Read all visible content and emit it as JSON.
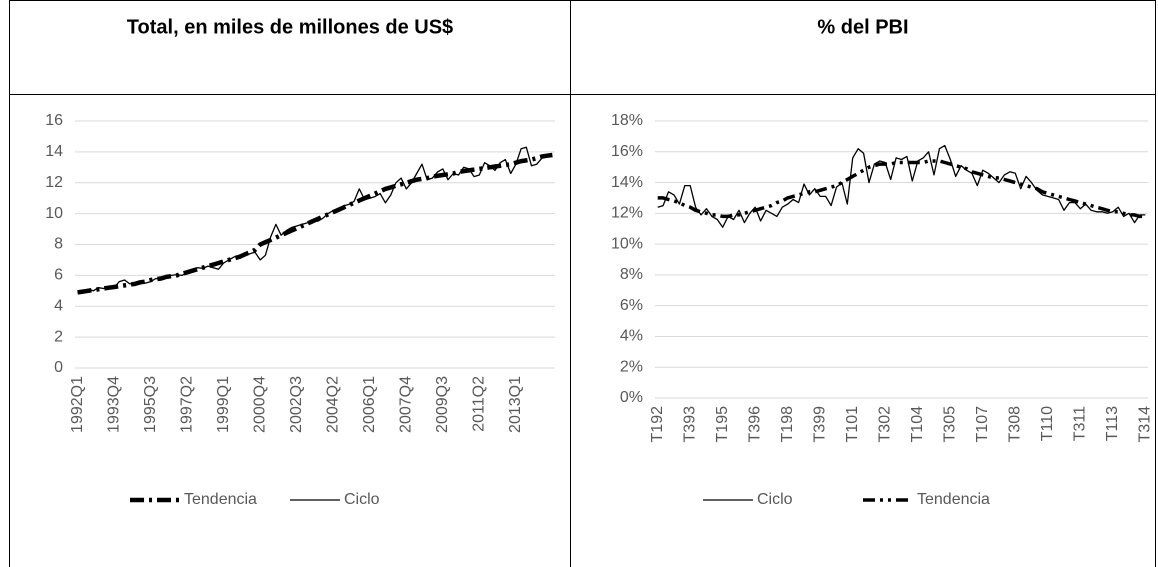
{
  "chart_data": [
    {
      "type": "line",
      "title": "Total, en miles de millones de US$",
      "categories": [
        "1992Q1",
        null,
        null,
        null,
        null,
        null,
        null,
        "1993Q4",
        null,
        null,
        null,
        null,
        null,
        null,
        "1995Q3",
        null,
        null,
        null,
        null,
        null,
        null,
        "1997Q2",
        null,
        null,
        null,
        null,
        null,
        null,
        "1999Q1",
        null,
        null,
        null,
        null,
        null,
        null,
        "2000Q4",
        null,
        null,
        null,
        null,
        null,
        null,
        "2002Q3",
        null,
        null,
        null,
        null,
        null,
        null,
        "2004Q2",
        null,
        null,
        null,
        null,
        null,
        null,
        "2006Q1",
        null,
        null,
        null,
        null,
        null,
        null,
        "2007Q4",
        null,
        null,
        null,
        null,
        null,
        null,
        "2009Q3",
        null,
        null,
        null,
        null,
        null,
        null,
        "2011Q2",
        null,
        null,
        null,
        null,
        null,
        null,
        "2013Q1",
        null,
        null,
        null,
        null,
        null,
        null,
        null
      ],
      "series": [
        {
          "name": "Tendencia",
          "color": "#000000",
          "style": "dashed",
          "values": [
            4.9,
            4.95,
            5.0,
            5.05,
            5.1,
            5.15,
            5.2,
            5.25,
            5.3,
            5.35,
            5.4,
            5.45,
            5.55,
            5.6,
            5.7,
            5.75,
            5.8,
            5.9,
            5.95,
            6.0,
            6.1,
            6.2,
            6.3,
            6.4,
            6.5,
            6.6,
            6.7,
            6.8,
            6.9,
            7.0,
            7.1,
            7.2,
            7.35,
            7.5,
            7.65,
            8.0,
            8.15,
            8.3,
            8.45,
            8.6,
            8.75,
            8.9,
            9.05,
            9.2,
            9.35,
            9.5,
            9.65,
            9.8,
            9.95,
            10.1,
            10.25,
            10.4,
            10.55,
            10.7,
            10.85,
            11.0,
            11.15,
            11.3,
            11.45,
            11.6,
            11.7,
            11.8,
            11.9,
            12.0,
            12.1,
            12.2,
            12.25,
            12.3,
            12.4,
            12.45,
            12.5,
            12.55,
            12.6,
            12.7,
            12.75,
            12.8,
            12.85,
            12.9,
            12.95,
            13.0,
            13.05,
            13.1,
            13.15,
            13.2,
            13.3,
            13.4,
            13.45,
            13.5,
            13.6,
            13.7,
            13.75,
            13.8
          ]
        },
        {
          "name": "Ciclo",
          "color": "#000000",
          "style": "solid",
          "values": [
            4.85,
            5.0,
            5.1,
            5.0,
            5.2,
            5.15,
            5.25,
            5.2,
            5.6,
            5.7,
            5.45,
            5.5,
            5.55,
            5.5,
            5.6,
            5.8,
            5.75,
            5.9,
            6.0,
            6.05,
            6.0,
            6.2,
            6.35,
            6.5,
            6.45,
            6.6,
            6.5,
            6.4,
            6.8,
            7.0,
            7.2,
            7.3,
            7.25,
            7.4,
            7.5,
            7.0,
            7.3,
            8.5,
            9.3,
            8.6,
            8.9,
            9.1,
            9.2,
            9.3,
            9.4,
            9.6,
            9.5,
            9.7,
            10.0,
            10.2,
            10.3,
            10.5,
            10.6,
            10.8,
            11.6,
            10.9,
            11.0,
            11.1,
            11.3,
            10.7,
            11.2,
            12.0,
            12.3,
            11.6,
            12.0,
            12.6,
            13.2,
            12.2,
            12.3,
            12.7,
            12.9,
            12.2,
            12.6,
            12.5,
            13.0,
            12.9,
            12.4,
            12.5,
            13.3,
            13.1,
            12.8,
            13.3,
            13.5,
            12.6,
            13.2,
            14.2,
            14.3,
            13.1,
            13.2,
            13.6,
            13.8,
            13.7
          ]
        }
      ],
      "ylim": [
        0,
        16
      ],
      "yticks": [
        0,
        2,
        4,
        6,
        8,
        10,
        12,
        14,
        16
      ],
      "grid": true,
      "legend": "bottom"
    },
    {
      "type": "line",
      "title": "% del PBI",
      "categories": [
        "T192",
        null,
        null,
        null,
        null,
        null,
        "T393",
        null,
        null,
        null,
        null,
        null,
        "T195",
        null,
        null,
        null,
        null,
        null,
        "T396",
        null,
        null,
        null,
        null,
        null,
        "T198",
        null,
        null,
        null,
        null,
        null,
        "T399",
        null,
        null,
        null,
        null,
        null,
        "T101",
        null,
        null,
        null,
        null,
        null,
        "T302",
        null,
        null,
        null,
        null,
        null,
        "T104",
        null,
        null,
        null,
        null,
        null,
        "T305",
        null,
        null,
        null,
        null,
        null,
        "T107",
        null,
        null,
        null,
        null,
        null,
        "T308",
        null,
        null,
        null,
        null,
        null,
        "T110",
        null,
        null,
        null,
        null,
        null,
        "T311",
        null,
        null,
        null,
        null,
        null,
        "T113",
        null,
        null,
        null,
        null,
        null,
        "T314"
      ],
      "series": [
        {
          "name": "Ciclo",
          "color": "#000000",
          "style": "solid",
          "values": [
            12.4,
            12.5,
            13.4,
            13.2,
            12.6,
            13.8,
            13.8,
            12.4,
            11.9,
            12.3,
            11.8,
            11.6,
            11.1,
            11.8,
            11.6,
            12.2,
            11.4,
            12.0,
            12.4,
            11.5,
            12.2,
            12.0,
            11.8,
            12.4,
            12.6,
            12.9,
            12.7,
            13.9,
            13.2,
            13.6,
            13.1,
            13.1,
            12.5,
            13.7,
            14.0,
            12.6,
            15.6,
            16.2,
            15.9,
            14.0,
            15.2,
            15.4,
            15.3,
            14.2,
            15.6,
            15.5,
            15.7,
            14.1,
            15.4,
            15.6,
            16.0,
            14.5,
            16.2,
            16.4,
            15.5,
            14.4,
            15.1,
            14.8,
            14.6,
            13.8,
            14.8,
            14.6,
            14.3,
            14.0,
            14.5,
            14.7,
            14.6,
            13.6,
            14.4,
            14.0,
            13.5,
            13.2,
            13.1,
            13.0,
            12.9,
            12.2,
            12.7,
            12.7,
            12.3,
            12.6,
            12.2,
            12.1,
            12.1,
            12.0,
            12.1,
            12.4,
            11.8,
            12.0,
            11.4,
            11.9,
            11.9
          ]
        },
        {
          "name": "Tendencia",
          "color": "#000000",
          "style": "dashed",
          "values": [
            13.0,
            13.0,
            12.9,
            12.8,
            12.7,
            12.5,
            12.4,
            12.2,
            12.1,
            12.0,
            11.9,
            11.9,
            11.8,
            11.8,
            11.9,
            11.9,
            12.0,
            12.1,
            12.2,
            12.3,
            12.4,
            12.5,
            12.7,
            12.8,
            13.0,
            13.1,
            13.2,
            13.3,
            13.4,
            13.4,
            13.5,
            13.6,
            13.7,
            13.8,
            14.0,
            14.2,
            14.4,
            14.6,
            14.8,
            15.0,
            15.1,
            15.2,
            15.2,
            15.2,
            15.3,
            15.3,
            15.3,
            15.3,
            15.3,
            15.3,
            15.4,
            15.4,
            15.4,
            15.3,
            15.2,
            15.1,
            15.0,
            14.9,
            14.7,
            14.6,
            14.5,
            14.4,
            14.3,
            14.3,
            14.2,
            14.1,
            14.0,
            13.9,
            13.8,
            13.7,
            13.6,
            13.4,
            13.3,
            13.2,
            13.1,
            13.0,
            12.9,
            12.8,
            12.7,
            12.6,
            12.5,
            12.4,
            12.3,
            12.2,
            12.1,
            12.1,
            12.0,
            11.9,
            11.9,
            11.8,
            11.8
          ]
        }
      ],
      "ylim": [
        0,
        18
      ],
      "yticks": [
        {
          "value": 0,
          "label": "0%"
        },
        {
          "value": 2,
          "label": "2%"
        },
        {
          "value": 4,
          "label": "4%"
        },
        {
          "value": 6,
          "label": "6%"
        },
        {
          "value": 8,
          "label": "8%"
        },
        {
          "value": 10,
          "label": "10%"
        },
        {
          "value": 12,
          "label": "12%"
        },
        {
          "value": 14,
          "label": "14%"
        },
        {
          "value": 16,
          "label": "16%"
        },
        {
          "value": 18,
          "label": "18%"
        }
      ],
      "grid": true,
      "legend": "bottom"
    }
  ]
}
